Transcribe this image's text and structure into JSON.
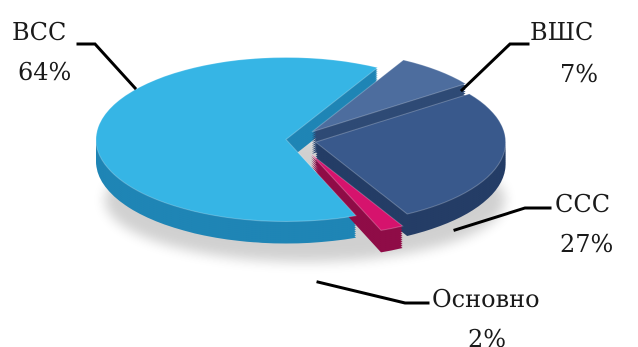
{
  "chart_data": {
    "type": "pie",
    "style": "3d-exploded",
    "slices": [
      {
        "name": "ВСС",
        "value": 64,
        "pct_label": "64%",
        "color": "#36b5e5",
        "side": "#1f85b5"
      },
      {
        "name": "ВШС",
        "value": 7,
        "pct_label": "7%",
        "color": "#4d6d9e",
        "side": "#2e4a75"
      },
      {
        "name": "ССС",
        "value": 27,
        "pct_label": "27%",
        "color": "#39598c",
        "side": "#243d66"
      },
      {
        "name": "Основно",
        "value": 2,
        "pct_label": "2%",
        "color": "#d6136d",
        "side": "#8f0c47"
      }
    ]
  }
}
